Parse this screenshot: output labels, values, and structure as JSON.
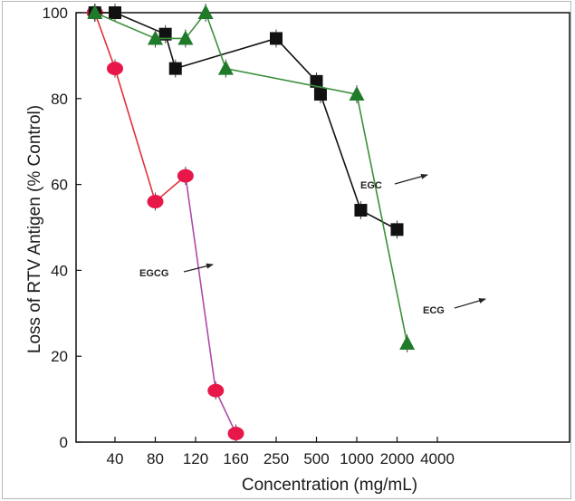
{
  "chart_data": {
    "type": "line",
    "xlabel": "Concentration (mg/mL)",
    "ylabel": "Loss of RTV Antigen (% Control)",
    "x_tick_labels": [
      "40",
      "80",
      "120",
      "160",
      "250",
      "500",
      "1000",
      "2000",
      "4000"
    ],
    "y_ticks": [
      0,
      20,
      40,
      60,
      80,
      100
    ],
    "ylim": [
      0,
      100
    ],
    "grid": false,
    "series": [
      {
        "name": "EGCG",
        "marker": "circle",
        "marker_color": "#e8174a",
        "line_colors": [
          "#e0303a",
          "#e0303a",
          "#e0303a",
          "#b04aa8",
          "#b04aa8",
          "#b04aa8"
        ],
        "points": [
          {
            "x_pos": 0.5,
            "y": 100
          },
          {
            "x_pos": 1.0,
            "y": 87
          },
          {
            "x_pos": 2.0,
            "y": 56
          },
          {
            "x_pos": 2.75,
            "y": 62
          },
          {
            "x_pos": 3.5,
            "y": 12
          },
          {
            "x_pos": 4.0,
            "y": 2
          }
        ]
      },
      {
        "name": "EGC",
        "marker": "square",
        "marker_color": "#111111",
        "line_colors": [
          "#111111"
        ],
        "points": [
          {
            "x_pos": 0.5,
            "y": 100
          },
          {
            "x_pos": 1.0,
            "y": 100
          },
          {
            "x_pos": 2.25,
            "y": 95
          },
          {
            "x_pos": 2.5,
            "y": 87
          },
          {
            "x_pos": 5.0,
            "y": 94
          },
          {
            "x_pos": 6.0,
            "y": 84
          },
          {
            "x_pos": 6.1,
            "y": 81
          },
          {
            "x_pos": 7.1,
            "y": 54
          },
          {
            "x_pos": 8.0,
            "y": 49.5
          }
        ]
      },
      {
        "name": "ECG",
        "marker": "triangle",
        "marker_color": "#1f7a2a",
        "line_colors": [
          "#3b8f3b"
        ],
        "points": [
          {
            "x_pos": 0.5,
            "y": 100
          },
          {
            "x_pos": 2.0,
            "y": 94
          },
          {
            "x_pos": 2.75,
            "y": 94
          },
          {
            "x_pos": 3.25,
            "y": 100
          },
          {
            "x_pos": 3.75,
            "y": 87
          },
          {
            "x_pos": 7.0,
            "y": 81
          },
          {
            "x_pos": 8.25,
            "y": 23
          }
        ]
      }
    ],
    "annotations": [
      {
        "text": "EGCG",
        "series": "EGCG"
      },
      {
        "text": "EGC",
        "series": "EGC"
      },
      {
        "text": "ECG",
        "series": "ECG"
      }
    ]
  }
}
